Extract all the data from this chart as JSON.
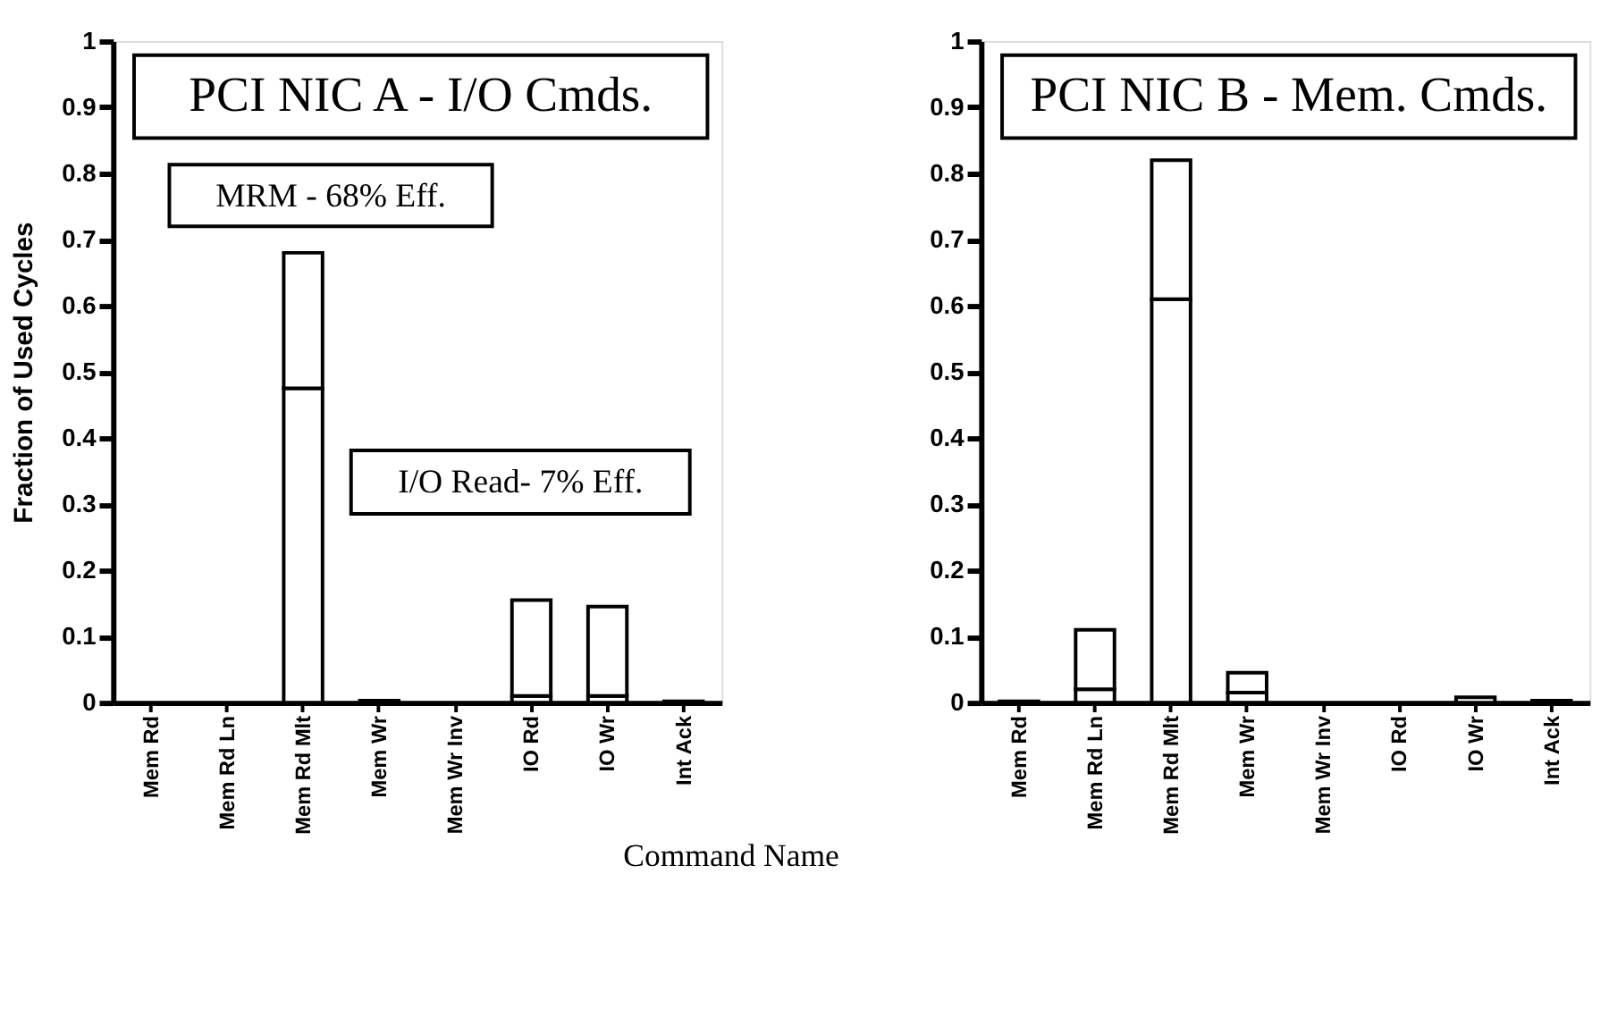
{
  "chart_data": [
    {
      "type": "bar",
      "title": "PCI NIC A - I/O Cmds.",
      "ylabel": "Fraction of Used Cycles",
      "xlabel": "Command Name",
      "stacked": true,
      "legend": false,
      "grid": false,
      "categories": [
        "Mem Rd",
        "Mem Rd Ln",
        "Mem Rd Mlt",
        "Mem Wr",
        "Mem Wr Inv",
        "IO Rd",
        "IO Wr",
        "Int Ack"
      ],
      "series": [
        {
          "color": "#ffffff",
          "values": [
            0,
            0,
            0.475,
            0.003,
            0,
            0.01,
            0.01,
            0.002
          ]
        },
        {
          "color": "#ffffff",
          "values": [
            0,
            0,
            0.205,
            0,
            0,
            0.145,
            0.135,
            0
          ]
        }
      ],
      "ylim": [
        0,
        1
      ],
      "yticks": [
        0,
        0.1,
        0.2,
        0.3,
        0.4,
        0.5,
        0.6,
        0.7,
        0.8,
        0.9,
        1
      ],
      "annotations": [
        "MRM - 68% Eff.",
        "I/O Read- 7% Eff."
      ]
    },
    {
      "type": "bar",
      "title": "PCI NIC B - Mem. Cmds.",
      "stacked": true,
      "legend": false,
      "grid": false,
      "categories": [
        "Mem Rd",
        "Mem Rd Ln",
        "Mem Rd Mlt",
        "Mem Wr",
        "Mem Wr Inv",
        "IO Rd",
        "IO Wr",
        "Int Ack"
      ],
      "series": [
        {
          "color": "#ffffff",
          "values": [
            0.002,
            0.02,
            0.61,
            0.015,
            0,
            0,
            0.008,
            0.003
          ]
        },
        {
          "color": "#ffffff",
          "values": [
            0,
            0.09,
            0.21,
            0.03,
            0,
            0,
            0,
            0
          ]
        }
      ],
      "ylim": [
        0,
        1
      ],
      "yticks": [
        0,
        0.1,
        0.2,
        0.3,
        0.4,
        0.5,
        0.6,
        0.7,
        0.8,
        0.9,
        1
      ]
    }
  ]
}
